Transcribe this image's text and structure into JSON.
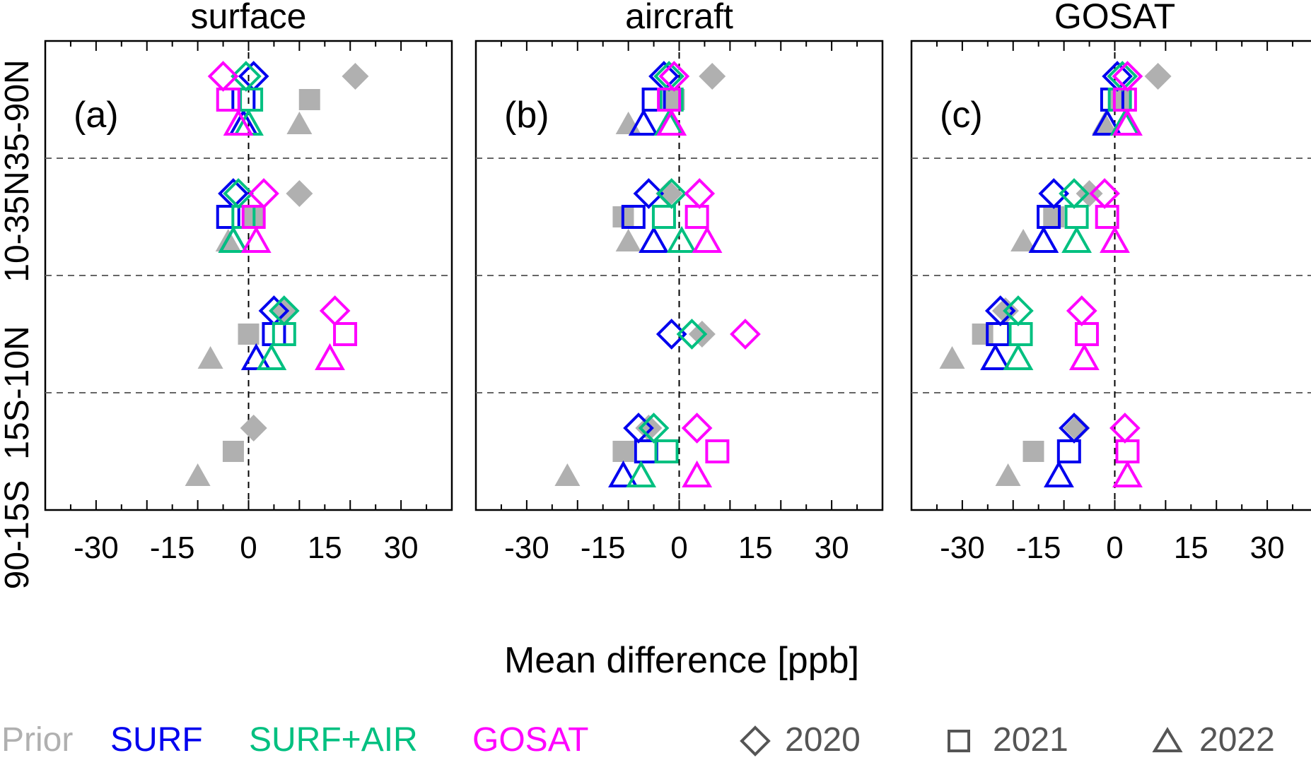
{
  "figure": {
    "xlabel": "Mean difference [ppb]",
    "xlim": [
      -40,
      40
    ],
    "xticks": [
      -30,
      -15,
      0,
      15,
      30
    ],
    "xtick_labels": [
      "-30",
      "-15",
      "0",
      "15",
      "30"
    ],
    "regions": [
      "35-90N",
      "10-35N",
      "15S-10N",
      "90-15S"
    ],
    "years": [
      "2020",
      "2021",
      "2022"
    ],
    "year_markers": [
      "diamond",
      "square",
      "triangle"
    ],
    "grid": "dashed horizontal separators between latitude bands; dashed vertical line at 0",
    "legend": {
      "placement": "bottom",
      "series": [
        {
          "name": "Prior",
          "color": "#b0b0b0",
          "filled": true
        },
        {
          "name": "SURF",
          "color": "#0000ee",
          "filled": false
        },
        {
          "name": "SURF+AIR",
          "color": "#00c080",
          "filled": false
        },
        {
          "name": "GOSAT",
          "color": "#ff00ff",
          "filled": false
        }
      ],
      "year_items": [
        {
          "label": "2020",
          "marker": "diamond",
          "color": "#555555"
        },
        {
          "label": "2021",
          "marker": "square",
          "color": "#555555"
        },
        {
          "label": "2022",
          "marker": "triangle",
          "color": "#555555"
        }
      ]
    }
  },
  "chart_data": [
    {
      "type": "scatter",
      "title": "surface",
      "panel_label": "(a)",
      "series": [
        {
          "name": "Prior",
          "values": {
            "35-90N": [
              21,
              12,
              10
            ],
            "10-35N": [
              10,
              1,
              -4
            ],
            "15S-10N": [
              7,
              0,
              -7.5
            ],
            "90-15S": [
              1,
              -3,
              -10
            ]
          }
        },
        {
          "name": "SURF",
          "values": {
            "35-90N": [
              1,
              -1,
              -1
            ],
            "10-35N": [
              -3,
              -4,
              -3
            ],
            "15S-10N": [
              5,
              5,
              1.5
            ]
          }
        },
        {
          "name": "SURF+AIR",
          "values": {
            "35-90N": [
              -0.5,
              0.5,
              0
            ],
            "10-35N": [
              -2,
              -1,
              -3
            ],
            "15S-10N": [
              7,
              7,
              4.5
            ]
          }
        },
        {
          "name": "GOSAT",
          "values": {
            "35-90N": [
              -5,
              -4,
              -2
            ],
            "10-35N": [
              3,
              1,
              1.5
            ],
            "15S-10N": [
              17,
              19,
              16
            ]
          }
        }
      ]
    },
    {
      "type": "scatter",
      "title": "aircraft",
      "panel_label": "(b)",
      "series": [
        {
          "name": "Prior",
          "values": {
            "35-90N": [
              6.5,
              -1,
              -10
            ],
            "10-35N": [
              -2,
              -11,
              -10
            ],
            "15S-10N": [
              4.5
            ],
            "90-15S": [
              -6,
              -11,
              -22
            ]
          }
        },
        {
          "name": "SURF",
          "values": {
            "35-90N": [
              -3,
              -5,
              -7
            ],
            "10-35N": [
              -6,
              -9,
              -5
            ],
            "15S-10N": [
              -1.5
            ],
            "90-15S": [
              -8,
              -6.5,
              -11
            ]
          }
        },
        {
          "name": "SURF+AIR",
          "values": {
            "35-90N": [
              -2,
              -1.5,
              -2
            ],
            "10-35N": [
              -1.5,
              -3,
              0.5
            ],
            "15S-10N": [
              2.5
            ],
            "90-15S": [
              -5,
              -2.5,
              -7.5
            ]
          }
        },
        {
          "name": "GOSAT",
          "values": {
            "35-90N": [
              -1,
              -2,
              -1.5
            ],
            "10-35N": [
              4,
              3.5,
              5.5
            ],
            "15S-10N": [
              13
            ],
            "90-15S": [
              3.5,
              7.5,
              3.5
            ]
          }
        }
      ]
    },
    {
      "type": "scatter",
      "title": "GOSAT",
      "panel_label": "(c)",
      "series": [
        {
          "name": "Prior",
          "values": {
            "35-90N": [
              8.5,
              1,
              -2
            ],
            "10-35N": [
              -5,
              -12,
              -18
            ],
            "15S-10N": [
              -21.5,
              -26,
              -32
            ],
            "90-15S": [
              -7.5,
              -16,
              -21
            ]
          }
        },
        {
          "name": "SURF",
          "values": {
            "35-90N": [
              0.5,
              -0.5,
              -1.5
            ],
            "10-35N": [
              -12,
              -13,
              -14
            ],
            "15S-10N": [
              -22.5,
              -23,
              -23.5
            ],
            "90-15S": [
              -8,
              -9,
              -11
            ]
          }
        },
        {
          "name": "SURF+AIR",
          "values": {
            "35-90N": [
              1.5,
              1,
              2
            ],
            "10-35N": [
              -8,
              -7.5,
              -7.5
            ],
            "15S-10N": [
              -19,
              -18.5,
              -19
            ]
          }
        },
        {
          "name": "GOSAT",
          "values": {
            "35-90N": [
              2.5,
              2,
              2.5
            ],
            "10-35N": [
              -2,
              -1.5,
              0
            ],
            "15S-10N": [
              -6.5,
              -5.5,
              -6
            ],
            "90-15S": [
              2,
              2.5,
              2.5
            ]
          }
        }
      ]
    }
  ]
}
